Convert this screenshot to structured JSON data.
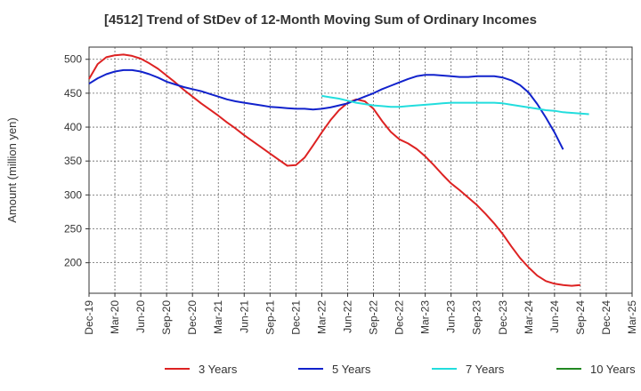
{
  "chart_data": {
    "type": "line",
    "title": "[4512]  Trend of StDev of 12-Month Moving Sum of Ordinary Incomes",
    "ylabel": "Amount (million yen)",
    "xlabel": "",
    "ylim": [
      155,
      518
    ],
    "yticks": [
      200,
      250,
      300,
      350,
      400,
      450,
      500
    ],
    "x_tick_labels": [
      "Dec-19",
      "Mar-20",
      "Jun-20",
      "Sep-20",
      "Dec-20",
      "Mar-21",
      "Jun-21",
      "Sep-21",
      "Dec-21",
      "Mar-22",
      "Jun-22",
      "Sep-22",
      "Dec-22",
      "Mar-23",
      "Jun-23",
      "Sep-23",
      "Dec-23",
      "Mar-24",
      "Jun-24",
      "Sep-24",
      "Dec-24",
      "Mar-25"
    ],
    "grid": true,
    "legend_position": "bottom",
    "series": [
      {
        "name": "3 Years",
        "color": "#dd2222",
        "points": [
          [
            "Dec-19",
            471
          ],
          [
            "Jan-20",
            493
          ],
          [
            "Feb-20",
            503
          ],
          [
            "Mar-20",
            506
          ],
          [
            "Apr-20",
            507
          ],
          [
            "May-20",
            505
          ],
          [
            "Jun-20",
            501
          ],
          [
            "Jul-20",
            494
          ],
          [
            "Aug-20",
            486
          ],
          [
            "Sep-20",
            476
          ],
          [
            "Oct-20",
            466
          ],
          [
            "Nov-20",
            455
          ],
          [
            "Dec-20",
            445
          ],
          [
            "Jan-21",
            435
          ],
          [
            "Feb-21",
            426
          ],
          [
            "Mar-21",
            417
          ],
          [
            "Apr-21",
            407
          ],
          [
            "May-21",
            398
          ],
          [
            "Jun-21",
            388
          ],
          [
            "Jul-21",
            379
          ],
          [
            "Aug-21",
            370
          ],
          [
            "Sep-21",
            361
          ],
          [
            "Oct-21",
            352
          ],
          [
            "Nov-21",
            343
          ],
          [
            "Dec-21",
            344
          ],
          [
            "Jan-22",
            355
          ],
          [
            "Feb-22",
            373
          ],
          [
            "Mar-22",
            392
          ],
          [
            "Apr-22",
            410
          ],
          [
            "May-22",
            425
          ],
          [
            "Jun-22",
            436
          ],
          [
            "Jul-22",
            441
          ],
          [
            "Aug-22",
            438
          ],
          [
            "Sep-22",
            427
          ],
          [
            "Oct-22",
            409
          ],
          [
            "Nov-22",
            393
          ],
          [
            "Dec-22",
            382
          ],
          [
            "Jan-23",
            376
          ],
          [
            "Feb-23",
            368
          ],
          [
            "Mar-23",
            357
          ],
          [
            "Apr-23",
            344
          ],
          [
            "May-23",
            330
          ],
          [
            "Jun-23",
            317
          ],
          [
            "Jul-23",
            307
          ],
          [
            "Aug-23",
            296
          ],
          [
            "Sep-23",
            285
          ],
          [
            "Oct-23",
            272
          ],
          [
            "Nov-23",
            258
          ],
          [
            "Dec-23",
            242
          ],
          [
            "Jan-24",
            224
          ],
          [
            "Feb-24",
            207
          ],
          [
            "Mar-24",
            193
          ],
          [
            "Apr-24",
            181
          ],
          [
            "May-24",
            173
          ],
          [
            "Jun-24",
            169
          ],
          [
            "Jul-24",
            167
          ],
          [
            "Aug-24",
            166
          ],
          [
            "Sep-24",
            167
          ]
        ]
      },
      {
        "name": "5 Years",
        "color": "#1122cc",
        "points": [
          [
            "Dec-19",
            464
          ],
          [
            "Jan-20",
            472
          ],
          [
            "Feb-20",
            478
          ],
          [
            "Mar-20",
            482
          ],
          [
            "Apr-20",
            484
          ],
          [
            "May-20",
            484
          ],
          [
            "Jun-20",
            482
          ],
          [
            "Jul-20",
            478
          ],
          [
            "Aug-20",
            473
          ],
          [
            "Sep-20",
            467
          ],
          [
            "Oct-20",
            463
          ],
          [
            "Nov-20",
            459
          ],
          [
            "Dec-20",
            456
          ],
          [
            "Jan-21",
            453
          ],
          [
            "Feb-21",
            449
          ],
          [
            "Mar-21",
            445
          ],
          [
            "Apr-21",
            441
          ],
          [
            "May-21",
            438
          ],
          [
            "Jun-21",
            436
          ],
          [
            "Jul-21",
            434
          ],
          [
            "Aug-21",
            432
          ],
          [
            "Sep-21",
            430
          ],
          [
            "Oct-21",
            429
          ],
          [
            "Nov-21",
            428
          ],
          [
            "Dec-21",
            427
          ],
          [
            "Jan-22",
            427
          ],
          [
            "Feb-22",
            426
          ],
          [
            "Mar-22",
            427
          ],
          [
            "Apr-22",
            429
          ],
          [
            "May-22",
            432
          ],
          [
            "Jun-22",
            435
          ],
          [
            "Jul-22",
            440
          ],
          [
            "Aug-22",
            445
          ],
          [
            "Sep-22",
            450
          ],
          [
            "Oct-22",
            456
          ],
          [
            "Nov-22",
            461
          ],
          [
            "Dec-22",
            466
          ],
          [
            "Jan-23",
            471
          ],
          [
            "Feb-23",
            475
          ],
          [
            "Mar-23",
            477
          ],
          [
            "Apr-23",
            477
          ],
          [
            "May-23",
            476
          ],
          [
            "Jun-23",
            475
          ],
          [
            "Jul-23",
            474
          ],
          [
            "Aug-23",
            474
          ],
          [
            "Sep-23",
            475
          ],
          [
            "Oct-23",
            475
          ],
          [
            "Nov-23",
            475
          ],
          [
            "Dec-23",
            473
          ],
          [
            "Jan-24",
            469
          ],
          [
            "Feb-24",
            462
          ],
          [
            "Mar-24",
            451
          ],
          [
            "Apr-24",
            434
          ],
          [
            "May-24",
            414
          ],
          [
            "Jun-24",
            392
          ],
          [
            "Jul-24",
            367
          ]
        ]
      },
      {
        "name": "7 Years",
        "color": "#22dddd",
        "points": [
          [
            "Mar-22",
            446
          ],
          [
            "Apr-22",
            444
          ],
          [
            "May-22",
            442
          ],
          [
            "Jun-22",
            439
          ],
          [
            "Jul-22",
            436
          ],
          [
            "Aug-22",
            434
          ],
          [
            "Sep-22",
            432
          ],
          [
            "Oct-22",
            431
          ],
          [
            "Nov-22",
            430
          ],
          [
            "Dec-22",
            430
          ],
          [
            "Jan-23",
            431
          ],
          [
            "Feb-23",
            432
          ],
          [
            "Mar-23",
            433
          ],
          [
            "Apr-23",
            434
          ],
          [
            "May-23",
            435
          ],
          [
            "Jun-23",
            436
          ],
          [
            "Jul-23",
            436
          ],
          [
            "Aug-23",
            436
          ],
          [
            "Sep-23",
            436
          ],
          [
            "Oct-23",
            436
          ],
          [
            "Nov-23",
            436
          ],
          [
            "Dec-23",
            435
          ],
          [
            "Jan-24",
            433
          ],
          [
            "Feb-24",
            431
          ],
          [
            "Mar-24",
            429
          ],
          [
            "Apr-24",
            427
          ],
          [
            "May-24",
            425
          ],
          [
            "Jun-24",
            424
          ],
          [
            "Jul-24",
            422
          ],
          [
            "Aug-24",
            421
          ],
          [
            "Sep-24",
            420
          ],
          [
            "Oct-24",
            419
          ]
        ]
      },
      {
        "name": "10 Years",
        "color": "#228822",
        "points": []
      }
    ]
  }
}
